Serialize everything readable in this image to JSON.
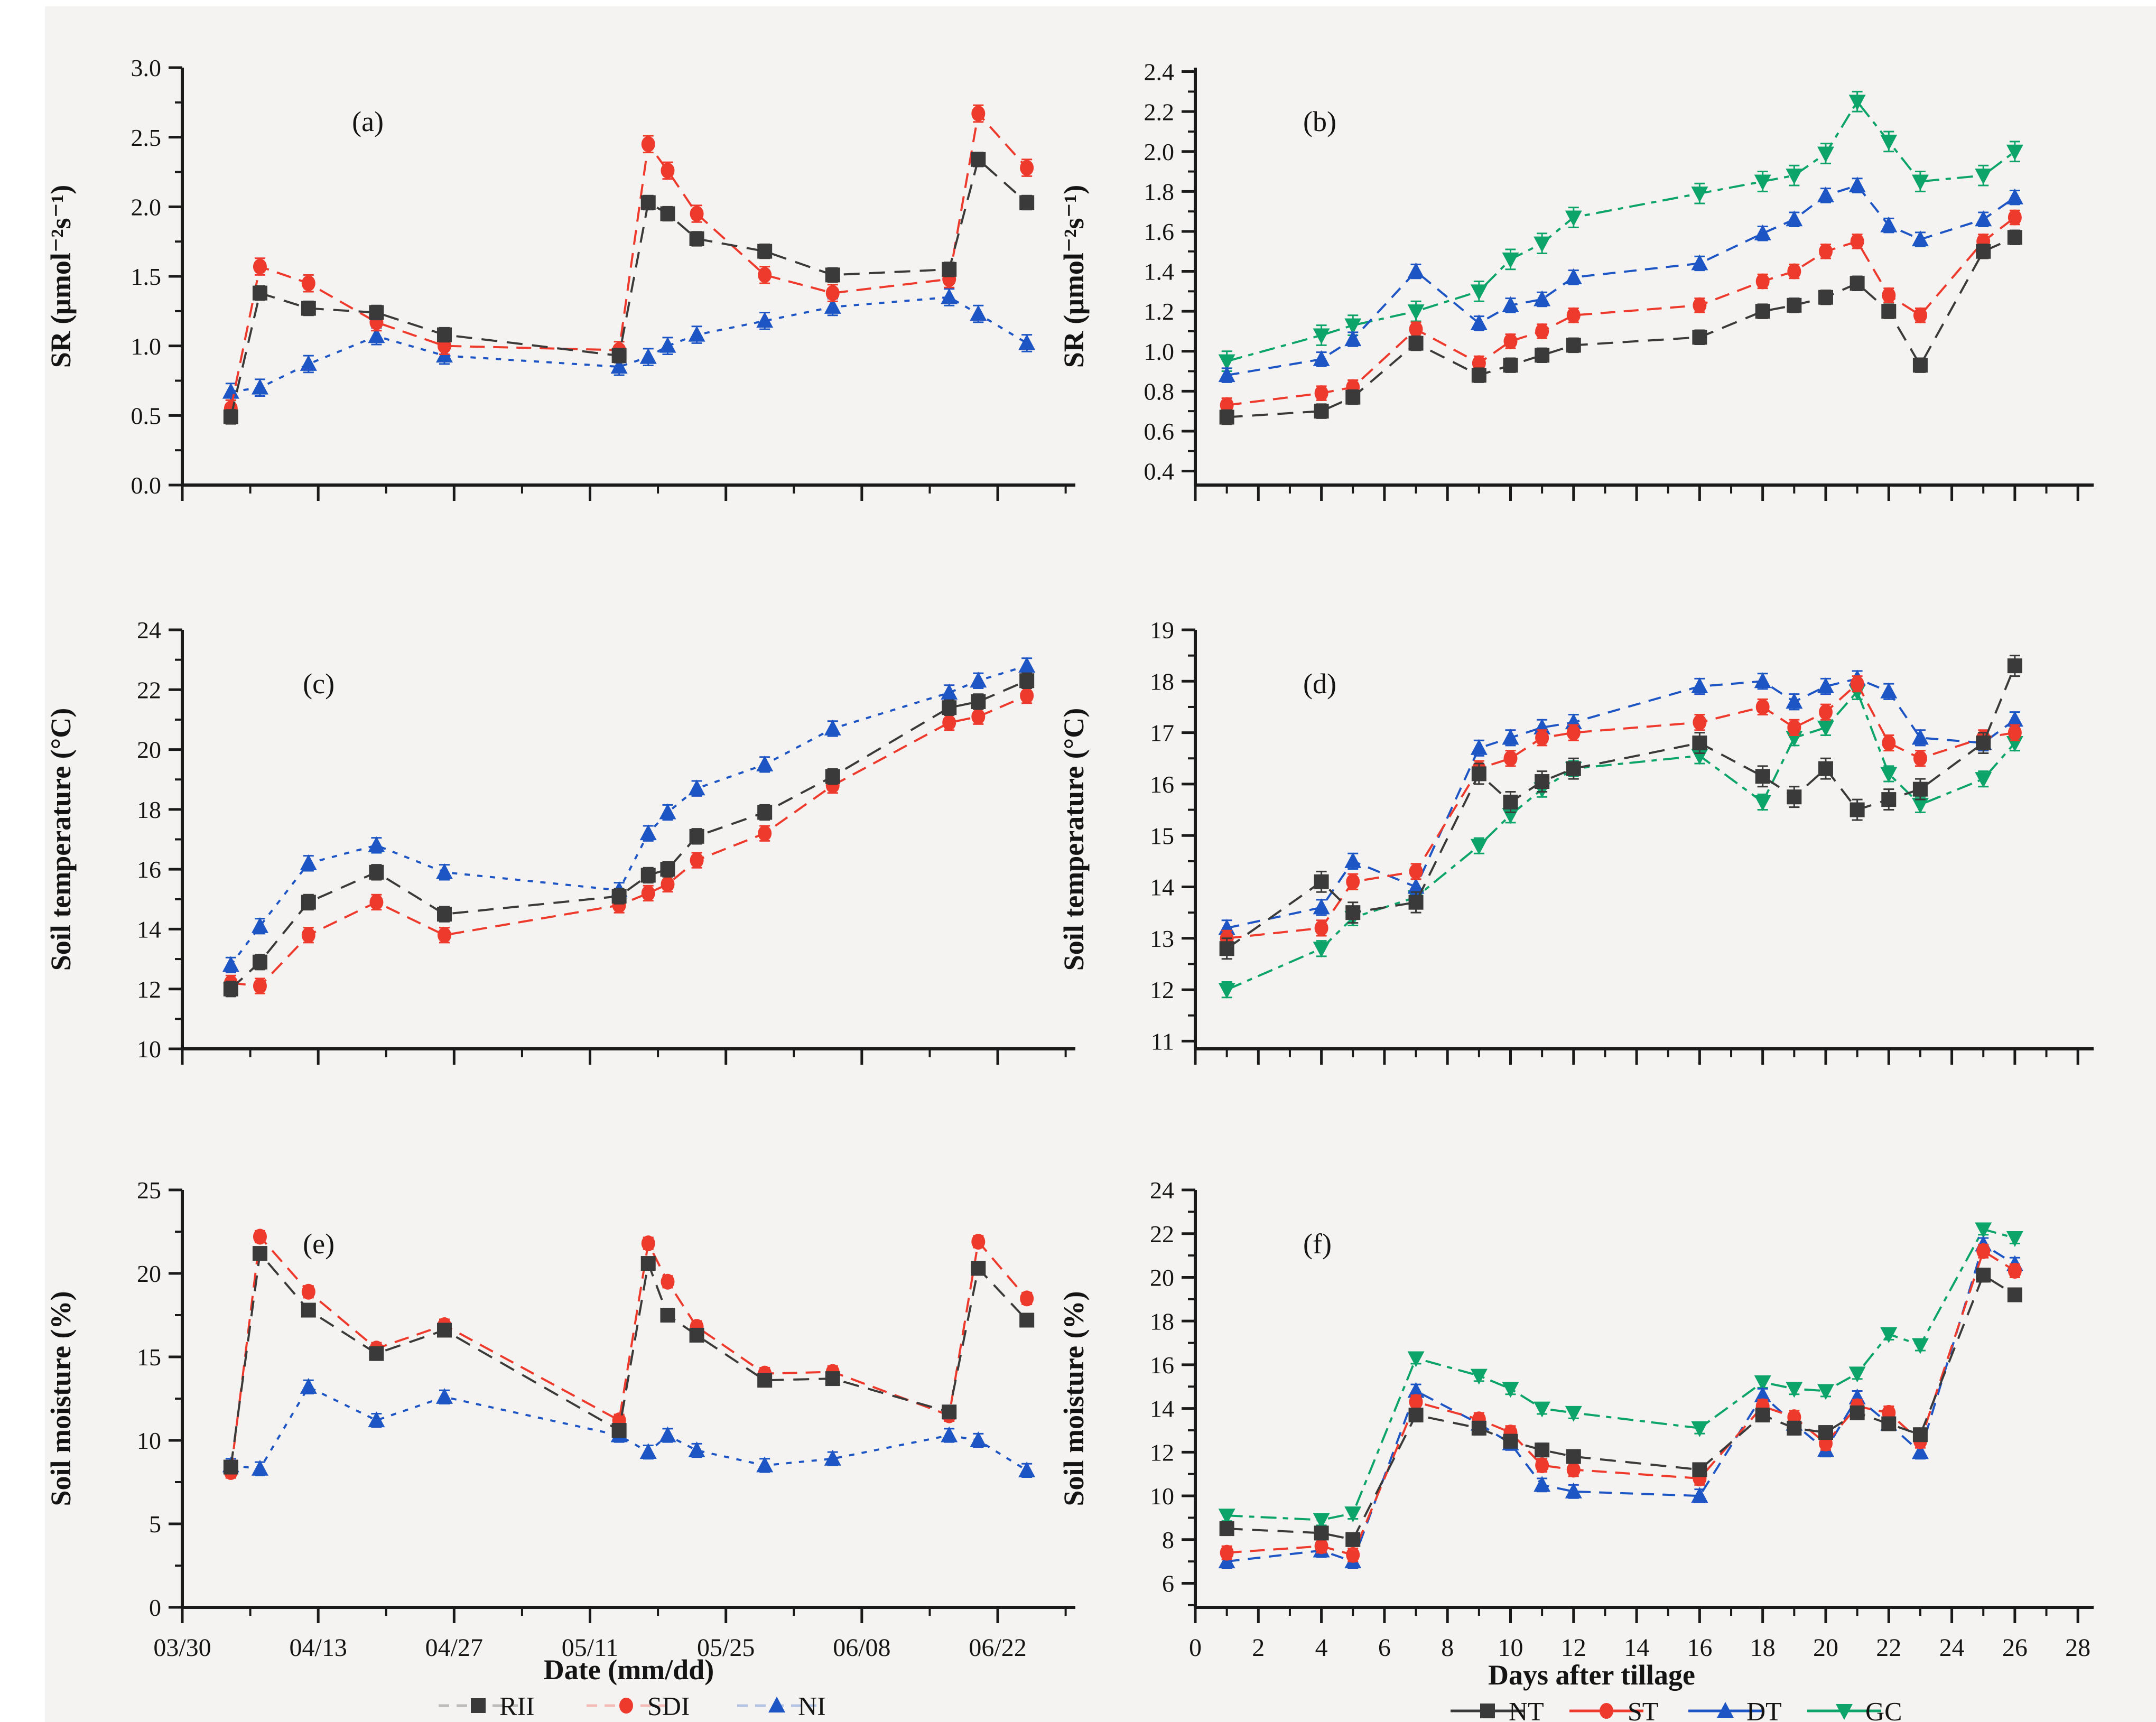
{
  "figure": {
    "background": "#f4f3f1",
    "axis_color": "#1a1a1a",
    "text_color": "#141414"
  },
  "series_styles": {
    "RII": {
      "color": "#3a3a3a",
      "marker": "square",
      "dash": "30 18"
    },
    "SDI": {
      "color": "#ee3a2c",
      "marker": "circle",
      "dash": "28 16"
    },
    "NI": {
      "color": "#1d55c4",
      "marker": "triangle-up",
      "dash": "10 14"
    },
    "NT": {
      "color": "#3a3a3a",
      "marker": "square",
      "dash": "30 18"
    },
    "ST": {
      "color": "#ee3a2c",
      "marker": "circle",
      "dash": "28 16"
    },
    "DT": {
      "color": "#1d55c4",
      "marker": "triangle-up",
      "dash": "24 16"
    },
    "GC": {
      "color": "#0ca469",
      "marker": "triangle-down",
      "dash": "30 12 10 12"
    }
  },
  "x_axes": {
    "left": {
      "axis_label": "Date (mm/dd)",
      "xlim": [
        0,
        92
      ],
      "tick_values": [
        0,
        14,
        28,
        42,
        56,
        70,
        84
      ],
      "tick_labels": [
        "03/30",
        "04/13",
        "04/27",
        "05/11",
        "05/25",
        "06/08",
        "06/22"
      ],
      "minor_step": 7,
      "point_x": [
        5,
        8,
        13,
        20,
        27,
        45,
        48,
        50,
        53,
        60,
        67,
        79,
        82,
        87
      ],
      "point_dates": [
        "04/04",
        "04/07",
        "04/12",
        "04/19",
        "04/26",
        "05/14",
        "05/17",
        "05/19",
        "05/22",
        "05/29",
        "06/05",
        "06/17",
        "06/20",
        "06/25"
      ]
    },
    "right": {
      "axis_label": "Days after tillage",
      "xlim": [
        0,
        28.5
      ],
      "tick_values": [
        0,
        2,
        4,
        6,
        8,
        10,
        12,
        14,
        16,
        18,
        20,
        22,
        24,
        26,
        28
      ],
      "tick_labels": [
        "0",
        "2",
        "4",
        "6",
        "8",
        "10",
        "12",
        "14",
        "16",
        "18",
        "20",
        "22",
        "24",
        "26",
        "28"
      ],
      "minor_step": 1,
      "point_x": [
        1,
        4,
        5,
        7,
        9,
        10,
        11,
        12,
        16,
        18,
        19,
        20,
        21,
        22,
        23,
        25,
        26
      ]
    }
  },
  "legend_left": {
    "items": [
      {
        "label": "RII",
        "series": "RII"
      },
      {
        "label": "SDI",
        "series": "SDI"
      },
      {
        "label": "NI",
        "series": "NI"
      }
    ]
  },
  "legend_right": {
    "items": [
      {
        "label": "NT",
        "series": "NT"
      },
      {
        "label": "ST",
        "series": "ST"
      },
      {
        "label": "DT",
        "series": "DT"
      },
      {
        "label": "GC",
        "series": "GC"
      }
    ]
  },
  "chart_data": [
    {
      "id": "a",
      "type": "line",
      "panel_label": "(a)",
      "x_axis": "left",
      "show_x_tick_labels": false,
      "ylabel": "SR (μmol⁻²s⁻¹)",
      "ylim": [
        0,
        3.0
      ],
      "yticks": [
        0.0,
        0.5,
        1.0,
        1.5,
        2.0,
        2.5,
        3.0
      ],
      "ytick_decimals": 1,
      "y_minor_step": 0.25,
      "series": [
        {
          "name": "RII",
          "err": 0.05,
          "values": [
            0.49,
            1.38,
            1.27,
            1.24,
            1.08,
            0.93,
            2.03,
            1.95,
            1.77,
            1.68,
            1.51,
            1.55,
            2.34,
            2.03
          ]
        },
        {
          "name": "SDI",
          "err": 0.06,
          "values": [
            0.55,
            1.57,
            1.45,
            1.17,
            1.0,
            0.97,
            2.45,
            2.26,
            1.95,
            1.51,
            1.38,
            1.48,
            2.67,
            2.28
          ]
        },
        {
          "name": "NI",
          "err": 0.06,
          "values": [
            0.67,
            0.7,
            0.87,
            1.07,
            0.93,
            0.85,
            0.92,
            1.0,
            1.08,
            1.18,
            1.28,
            1.35,
            1.23,
            1.02
          ]
        }
      ]
    },
    {
      "id": "b",
      "type": "line",
      "panel_label": "(b)",
      "x_axis": "right",
      "show_x_tick_labels": false,
      "ylabel": "SR (μmol⁻²s⁻¹)",
      "ylim": [
        0.33,
        2.42
      ],
      "yticks": [
        0.4,
        0.6,
        0.8,
        1.0,
        1.2,
        1.4,
        1.6,
        1.8,
        2.0,
        2.2,
        2.4
      ],
      "ytick_decimals": 1,
      "y_minor_step": 0.1,
      "series": [
        {
          "name": "NT",
          "err": 0.035,
          "values": [
            0.67,
            0.7,
            0.77,
            1.04,
            0.88,
            0.93,
            0.98,
            1.03,
            1.07,
            1.2,
            1.23,
            1.27,
            1.34,
            1.2,
            0.93,
            1.5,
            1.57
          ]
        },
        {
          "name": "ST",
          "err": 0.035,
          "values": [
            0.73,
            0.79,
            0.82,
            1.11,
            0.94,
            1.05,
            1.1,
            1.18,
            1.23,
            1.35,
            1.4,
            1.5,
            1.55,
            1.28,
            1.18,
            1.55,
            1.67
          ]
        },
        {
          "name": "DT",
          "err": 0.035,
          "values": [
            0.88,
            0.96,
            1.06,
            1.4,
            1.14,
            1.23,
            1.26,
            1.37,
            1.44,
            1.59,
            1.66,
            1.78,
            1.83,
            1.63,
            1.56,
            1.66,
            1.77
          ]
        },
        {
          "name": "GC",
          "err": 0.05,
          "values": [
            0.95,
            1.08,
            1.13,
            1.2,
            1.3,
            1.46,
            1.54,
            1.67,
            1.79,
            1.85,
            1.88,
            1.99,
            2.25,
            2.05,
            1.85,
            1.88,
            2.0
          ]
        }
      ]
    },
    {
      "id": "c",
      "type": "line",
      "panel_label": "(c)",
      "x_axis": "left",
      "show_x_tick_labels": false,
      "ylabel": "Soil temperature (°C)",
      "ylim": [
        10,
        24
      ],
      "yticks": [
        10,
        12,
        14,
        16,
        18,
        20,
        22,
        24
      ],
      "ytick_decimals": 0,
      "y_minor_step": 1,
      "series": [
        {
          "name": "RII",
          "err": 0.25,
          "values": [
            12.0,
            12.9,
            14.9,
            15.9,
            14.5,
            15.1,
            15.8,
            16.0,
            17.1,
            17.9,
            19.1,
            21.4,
            21.6,
            22.3
          ]
        },
        {
          "name": "SDI",
          "err": 0.25,
          "values": [
            12.2,
            12.1,
            13.8,
            14.9,
            13.8,
            14.8,
            15.2,
            15.5,
            16.3,
            17.2,
            18.8,
            20.9,
            21.1,
            21.8
          ]
        },
        {
          "name": "NI",
          "err": 0.25,
          "values": [
            12.8,
            14.1,
            16.2,
            16.8,
            15.9,
            15.3,
            17.2,
            17.9,
            18.7,
            19.5,
            20.7,
            21.9,
            22.3,
            22.8
          ]
        }
      ]
    },
    {
      "id": "d",
      "type": "line",
      "panel_label": "(d)",
      "x_axis": "right",
      "show_x_tick_labels": false,
      "ylabel": "Soil temperature  (°C)",
      "ylim": [
        10.85,
        19
      ],
      "yticks": [
        11,
        12,
        13,
        14,
        15,
        16,
        17,
        18,
        19
      ],
      "ytick_decimals": 0,
      "y_minor_step": 0.5,
      "series": [
        {
          "name": "NT",
          "err": 0.2,
          "values": [
            12.8,
            14.1,
            13.5,
            13.7,
            16.2,
            15.65,
            16.05,
            16.3,
            16.8,
            16.15,
            15.75,
            16.3,
            15.5,
            15.7,
            15.9,
            16.8,
            18.3
          ]
        },
        {
          "name": "ST",
          "err": 0.15,
          "values": [
            13.0,
            13.2,
            14.1,
            14.3,
            16.3,
            16.5,
            16.9,
            17.0,
            17.2,
            17.5,
            17.1,
            17.4,
            17.95,
            16.8,
            16.5,
            16.9,
            17.0
          ]
        },
        {
          "name": "DT",
          "err": 0.15,
          "values": [
            13.2,
            13.6,
            14.5,
            14.0,
            16.7,
            16.9,
            17.1,
            17.2,
            17.9,
            18.0,
            17.6,
            17.9,
            18.05,
            17.8,
            16.9,
            16.8,
            17.25
          ]
        },
        {
          "name": "GC",
          "err": 0.15,
          "values": [
            12.0,
            12.8,
            13.4,
            13.8,
            14.8,
            15.4,
            15.9,
            16.3,
            16.55,
            15.65,
            16.9,
            17.1,
            17.8,
            16.2,
            15.6,
            16.1,
            16.8
          ]
        }
      ]
    },
    {
      "id": "e",
      "type": "line",
      "panel_label": "(e)",
      "x_axis": "left",
      "show_x_tick_labels": true,
      "ylabel": "Soil moisture (%)",
      "ylim": [
        0,
        25
      ],
      "yticks": [
        0,
        5,
        10,
        15,
        20,
        25
      ],
      "ytick_decimals": 0,
      "y_minor_step": 2.5,
      "series": [
        {
          "name": "RII",
          "err": 0.35,
          "values": [
            8.4,
            21.2,
            17.8,
            15.2,
            16.6,
            10.6,
            20.6,
            17.5,
            16.3,
            13.6,
            13.7,
            11.7,
            20.3,
            17.2
          ]
        },
        {
          "name": "SDI",
          "err": 0.35,
          "values": [
            8.1,
            22.2,
            18.9,
            15.5,
            16.9,
            11.2,
            21.8,
            19.5,
            16.8,
            14.0,
            14.1,
            11.5,
            21.9,
            18.5
          ]
        },
        {
          "name": "NI",
          "err": 0.4,
          "values": [
            8.5,
            8.3,
            13.2,
            11.2,
            12.6,
            10.3,
            9.3,
            10.3,
            9.4,
            8.5,
            8.9,
            10.3,
            10.0,
            8.2
          ]
        }
      ]
    },
    {
      "id": "f",
      "type": "line",
      "panel_label": "(f)",
      "x_axis": "right",
      "show_x_tick_labels": true,
      "ylabel": "Soil moisture (%)",
      "ylim": [
        4.9,
        24
      ],
      "yticks": [
        6,
        8,
        10,
        12,
        14,
        16,
        18,
        20,
        22,
        24
      ],
      "ytick_decimals": 0,
      "y_minor_step": 1,
      "series": [
        {
          "name": "NT",
          "err": 0.3,
          "values": [
            8.5,
            8.3,
            8.0,
            13.7,
            13.1,
            12.5,
            12.1,
            11.8,
            11.2,
            13.7,
            13.1,
            12.9,
            13.8,
            13.3,
            12.8,
            20.1,
            19.2
          ]
        },
        {
          "name": "ST",
          "err": 0.3,
          "values": [
            7.4,
            7.7,
            7.3,
            14.3,
            13.5,
            12.9,
            11.4,
            11.2,
            10.8,
            14.1,
            13.6,
            12.4,
            14.1,
            13.8,
            12.5,
            21.2,
            20.3
          ]
        },
        {
          "name": "DT",
          "err": 0.3,
          "values": [
            7.0,
            7.5,
            7.0,
            14.8,
            13.3,
            12.4,
            10.5,
            10.2,
            10.0,
            14.6,
            13.3,
            12.1,
            14.5,
            13.3,
            12.0,
            21.5,
            20.6
          ]
        },
        {
          "name": "GC",
          "err": 0.25,
          "values": [
            9.1,
            8.9,
            9.2,
            16.3,
            15.5,
            14.9,
            14.0,
            13.8,
            13.1,
            15.2,
            14.9,
            14.8,
            15.6,
            17.4,
            16.9,
            22.2,
            21.8
          ]
        }
      ]
    }
  ]
}
